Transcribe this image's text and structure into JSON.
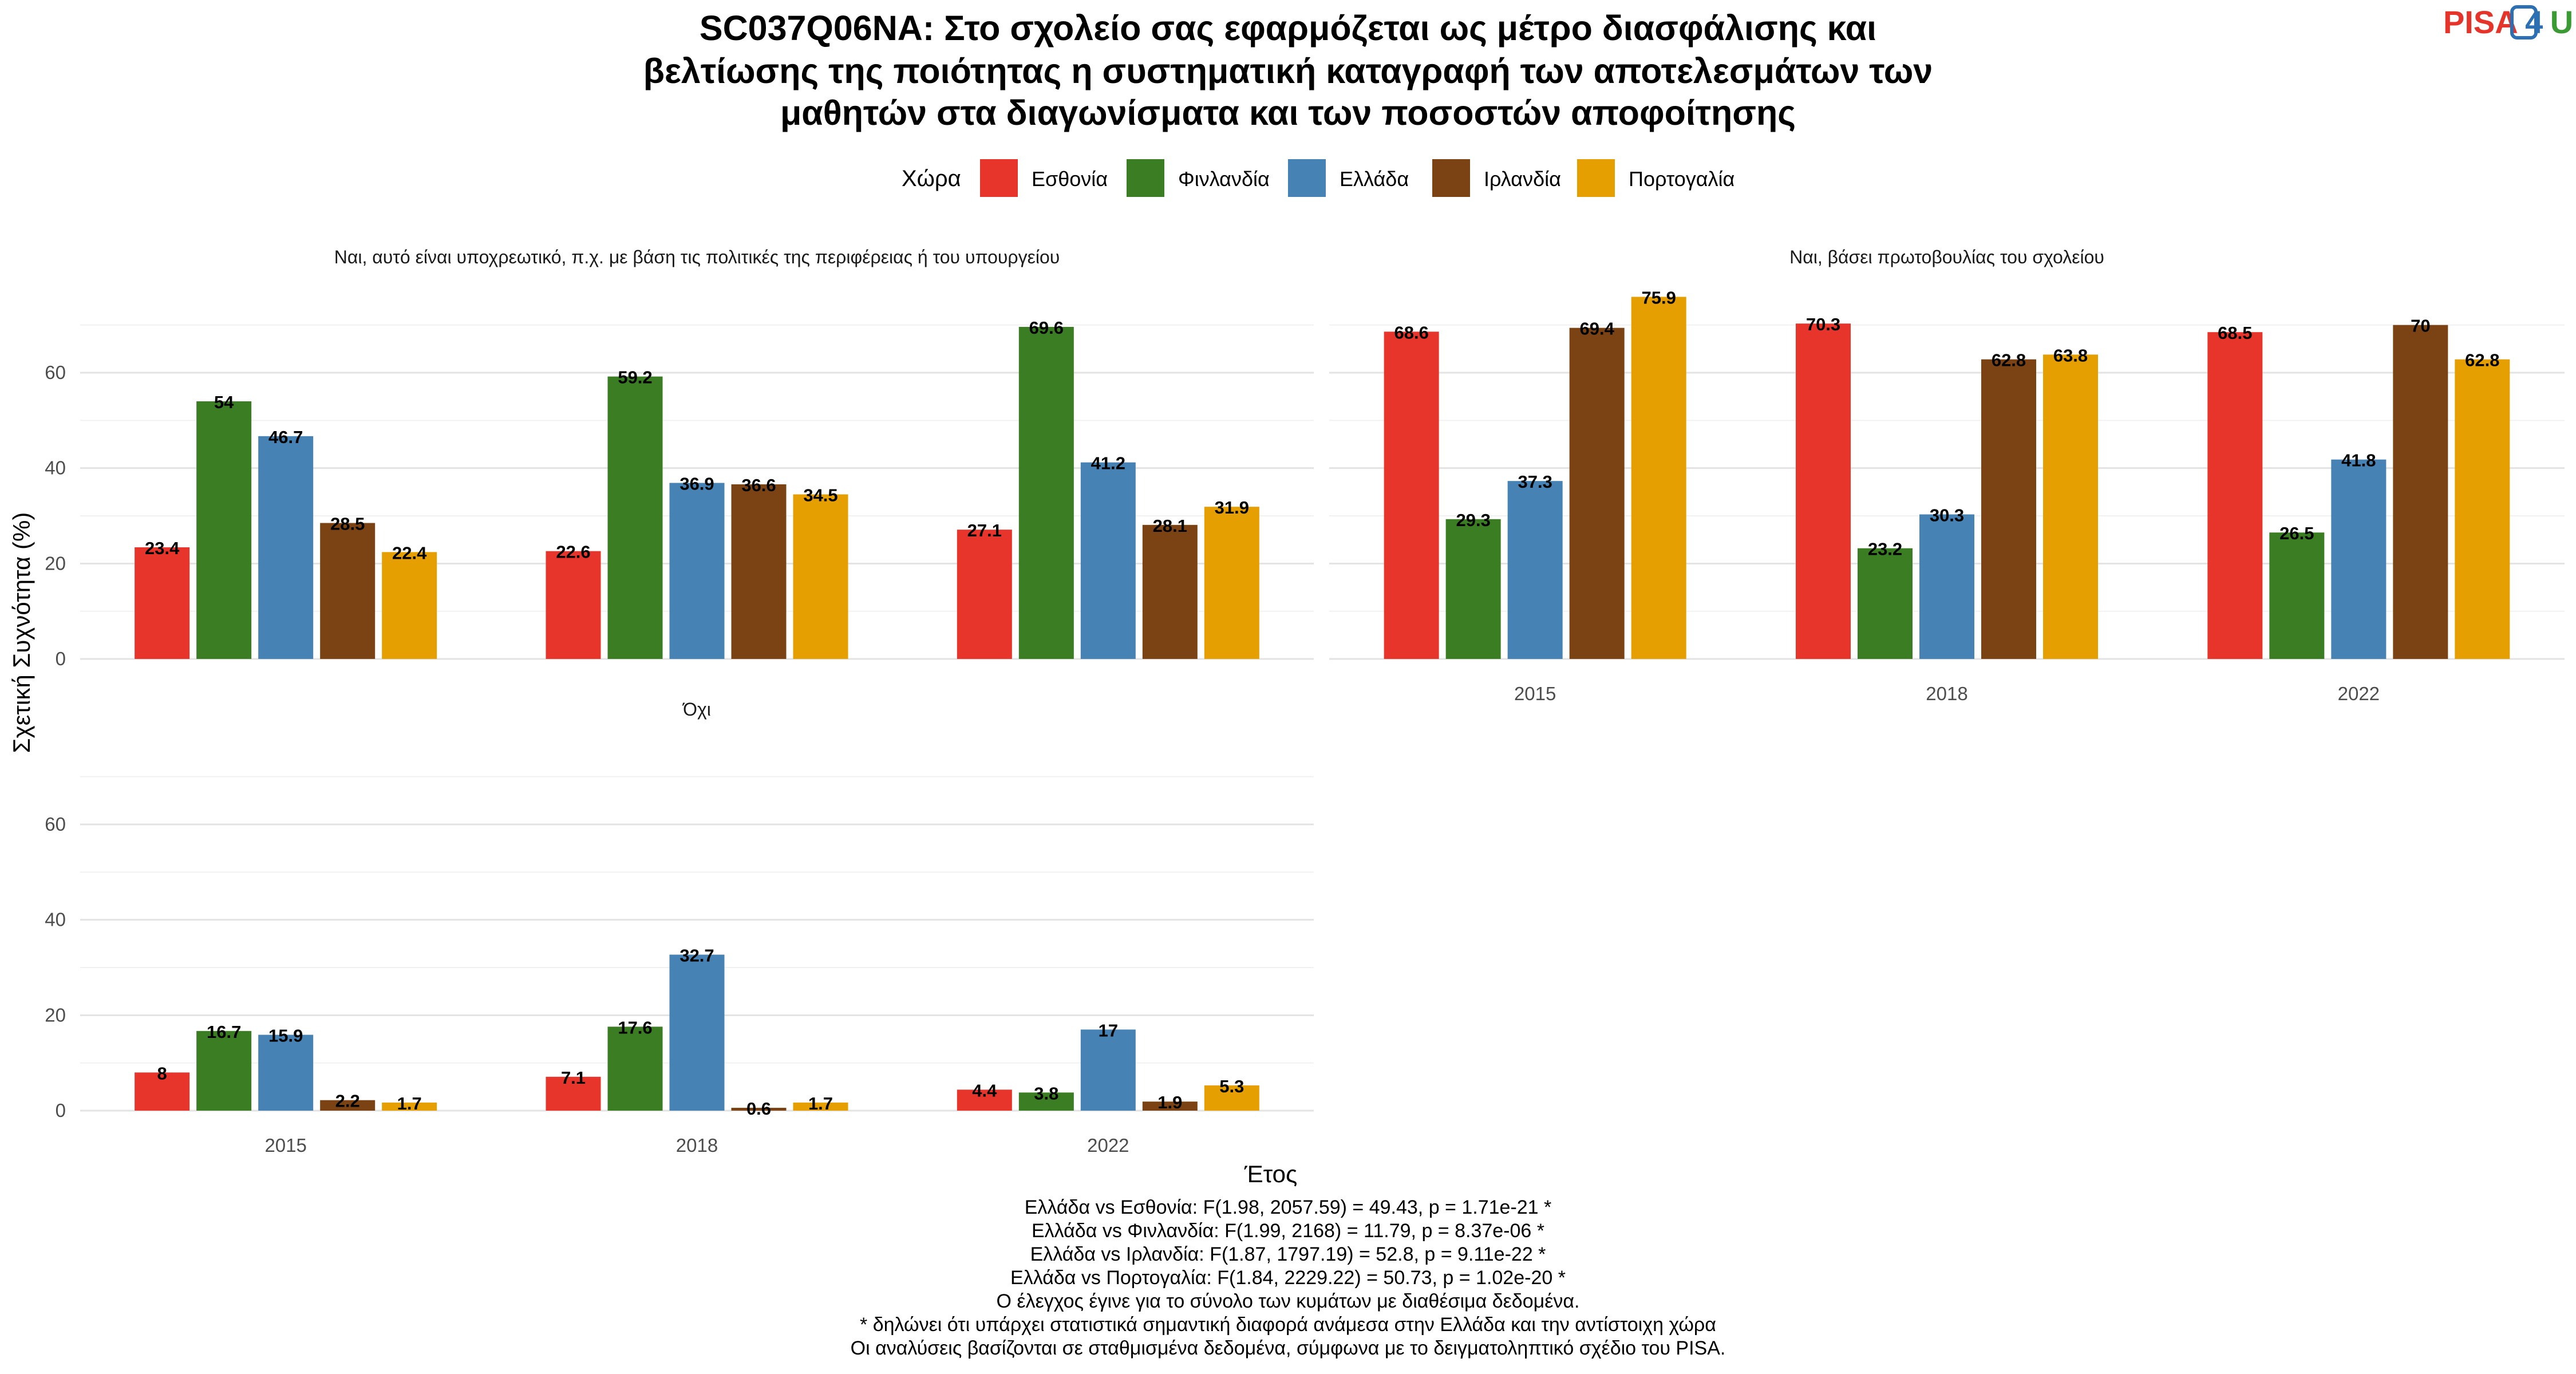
{
  "title_lines": [
    "SC037Q06NA: Στο σχολείο σας εφαρμόζεται ως μέτρο διασφάλισης και",
    "βελτίωσης της ποιότητας η συστηματική καταγραφή των αποτελεσμάτων των",
    "μαθητών στα διαγωνίσματα και των ποσοστών αποφοίτησης"
  ],
  "logo": {
    "part1": "PISA",
    "part2": "4",
    "part3": "U"
  },
  "legend": {
    "title": "Χώρα",
    "placement": "top-center"
  },
  "colors": {
    "Εσθονία": "#e8352b",
    "Φινλανδία": "#3a7d22",
    "Ελλάδα": "#4682b4",
    "Ιρλανδία": "#7b4314",
    "Πορτογαλία": "#e69f00"
  },
  "chart_data": {
    "type": "bar",
    "xlabel": "Έτος",
    "ylabel": "Σχετική Συχνότητα (%)",
    "ylim": [
      0,
      76
    ],
    "yticks": [
      0,
      20,
      40,
      60
    ],
    "grid": true,
    "categories": [
      "2015",
      "2018",
      "2022"
    ],
    "series_names": [
      "Εσθονία",
      "Φινλανδία",
      "Ελλάδα",
      "Ιρλανδία",
      "Πορτογαλία"
    ],
    "facets": [
      {
        "title": "Ναι, αυτό είναι υποχρεωτικό, π.χ. με βάση τις πολιτικές της περιφέρειας ή του υπουργείου",
        "values": {
          "2015": [
            23.4,
            54,
            46.7,
            28.5,
            22.4
          ],
          "2018": [
            22.6,
            59.2,
            36.9,
            36.6,
            34.5
          ],
          "2022": [
            27.1,
            69.6,
            41.2,
            28.1,
            31.9
          ]
        }
      },
      {
        "title": "Ναι, βάσει πρωτοβουλίας του σχολείου",
        "values": {
          "2015": [
            68.6,
            29.3,
            37.3,
            69.4,
            75.9
          ],
          "2018": [
            70.3,
            23.2,
            30.3,
            62.8,
            63.8
          ],
          "2022": [
            68.5,
            26.5,
            41.8,
            70,
            62.8
          ]
        }
      },
      {
        "title": "Όχι",
        "values": {
          "2015": [
            8,
            16.7,
            15.9,
            2.2,
            1.7
          ],
          "2018": [
            7.1,
            17.6,
            32.7,
            0.6,
            1.7
          ],
          "2022": [
            4.4,
            3.8,
            17,
            1.9,
            5.3
          ]
        }
      }
    ]
  },
  "caption_lines": [
    "Ελλάδα vs Εσθονία: F(1.98, 2057.59) = 49.43, p = 1.71e-21 *",
    "Ελλάδα vs Φινλανδία: F(1.99, 2168) = 11.79, p = 8.37e-06 *",
    "Ελλάδα vs Ιρλανδία: F(1.87, 1797.19) = 52.8, p = 9.11e-22 *",
    "Ελλάδα vs Πορτογαλία: F(1.84, 2229.22) = 50.73, p = 1.02e-20 *",
    "Ο έλεγχος έγινε για το σύνολο των κυμάτων με διαθέσιμα δεδομένα.",
    "* δηλώνει ότι υπάρχει στατιστικά σημαντική διαφορά ανάμεσα στην Ελλάδα και την αντίστοιχη χώρα",
    "Οι αναλύσεις βασίζονται σε σταθμισμένα δεδομένα, σύμφωνα με το δειγματοληπτικό σχέδιο του PISA."
  ]
}
